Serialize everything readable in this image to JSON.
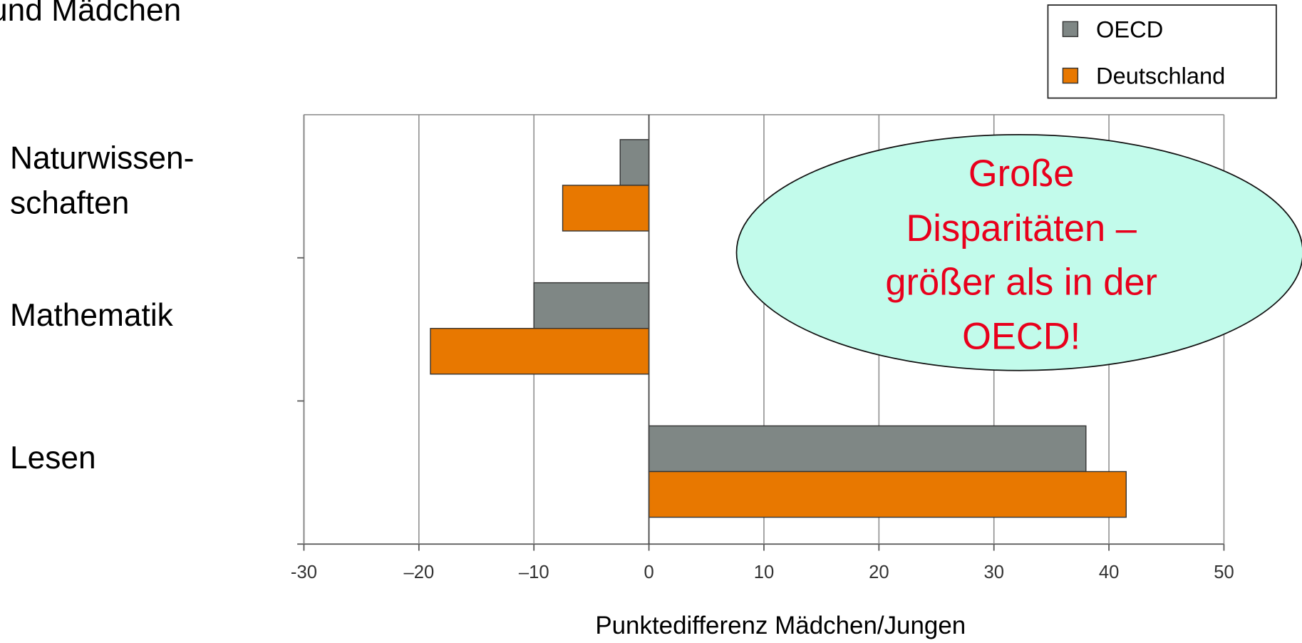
{
  "chart_data": {
    "type": "barh",
    "title": "und Mädchen",
    "categories": [
      "Naturwissen-\nschaften",
      "Mathematik",
      "Lesen"
    ],
    "series": [
      {
        "name": "OECD",
        "color": "#7f8785",
        "values": [
          -2.5,
          -10,
          38
        ]
      },
      {
        "name": "Deutschland",
        "color": "#e87800",
        "values": [
          -7.5,
          -19,
          41.5
        ]
      }
    ],
    "xlim": [
      -30,
      50
    ],
    "xticks": [
      -30,
      {
        "value": -20,
        "label": "–20"
      },
      {
        "value": -10,
        "label": "–10"
      },
      0,
      10,
      20,
      30,
      40,
      50
    ],
    "x_label": "Punktedifferenz Mädchen/Jungen",
    "grid": true,
    "legend": "upper right",
    "annotation": [
      "Große",
      "Disparitäten –",
      "größer als in der",
      "OECD!"
    ]
  }
}
